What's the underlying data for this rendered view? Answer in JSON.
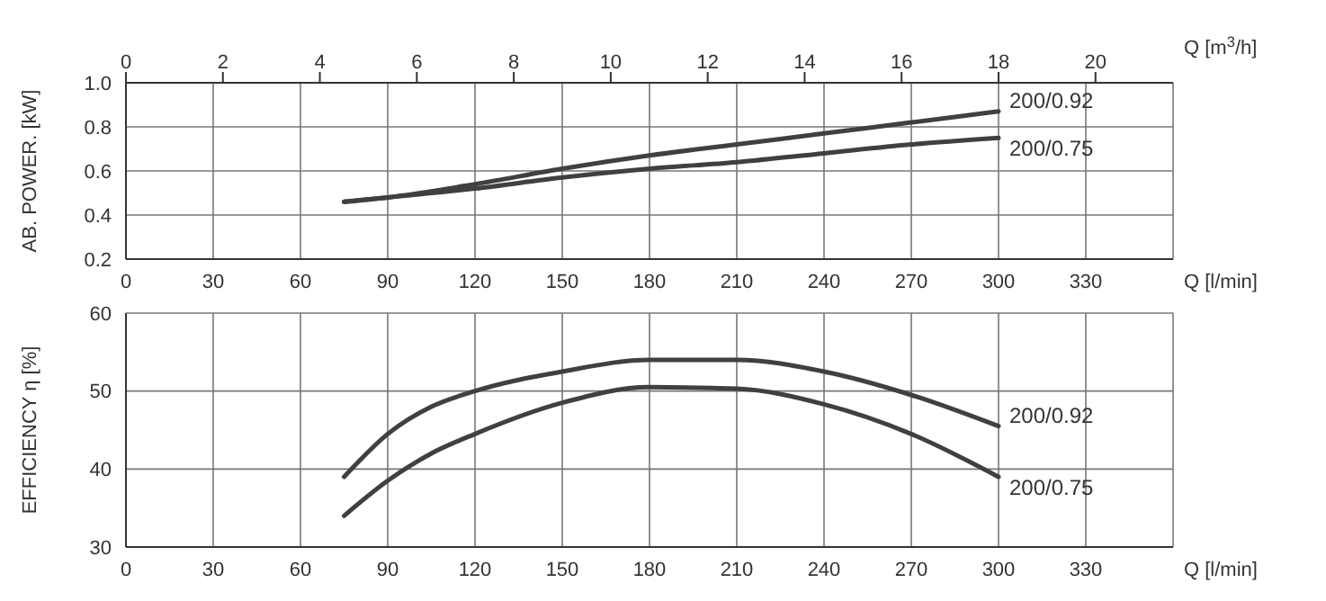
{
  "chart_data": [
    {
      "type": "line",
      "ylabel": "AB. POWER. [kW]",
      "xlabel": "Q [l/min]",
      "x2label": "Q [m$^{3}$/h]",
      "xlim": [
        0,
        360
      ],
      "xticks": [
        0,
        30,
        60,
        90,
        120,
        150,
        180,
        210,
        240,
        270,
        300,
        330
      ],
      "x2lim": [
        0,
        21.6
      ],
      "x2ticks": [
        0,
        2,
        4,
        6,
        8,
        10,
        12,
        14,
        16,
        18,
        20
      ],
      "ylim": [
        0.2,
        1.0
      ],
      "yticks": [
        0.2,
        0.4,
        0.6,
        0.8,
        {
          "value": 1,
          "label": "1.0"
        }
      ],
      "grid": true,
      "legend": false,
      "marker": "none",
      "line_style": "solid",
      "x": [
        75,
        90,
        120,
        150,
        180,
        210,
        240,
        270,
        300
      ],
      "series": [
        {
          "name": "200/0.92",
          "color": "#404040",
          "values": [
            0.46,
            0.48,
            0.54,
            0.61,
            0.67,
            0.72,
            0.77,
            0.82,
            0.87
          ]
        },
        {
          "name": "200/0.75",
          "color": "#404040",
          "values": [
            0.46,
            0.48,
            0.52,
            0.57,
            0.61,
            0.64,
            0.68,
            0.72,
            0.75
          ]
        }
      ]
    },
    {
      "type": "line",
      "ylabel": "EFFICIENCY η [%]",
      "xlabel": "Q [l/min]",
      "xlim": [
        0,
        360
      ],
      "xticks": [
        0,
        30,
        60,
        90,
        120,
        150,
        180,
        210,
        240,
        270,
        300,
        330
      ],
      "ylim": [
        30,
        60
      ],
      "yticks": [
        30,
        40,
        50,
        60
      ],
      "grid": true,
      "legend": false,
      "marker": "none",
      "line_style": "solid",
      "x": [
        75,
        90,
        105,
        120,
        150,
        180,
        210,
        240,
        270,
        300
      ],
      "series": [
        {
          "name": "200/0.92",
          "color": "#404040",
          "values": [
            39,
            44.5,
            48,
            50,
            52.5,
            54,
            54,
            52.5,
            49.5,
            45.5
          ]
        },
        {
          "name": "200/0.75",
          "color": "#404040",
          "values": [
            34,
            38.5,
            42,
            44.5,
            48.5,
            50.5,
            50.3,
            48.3,
            44.5,
            39
          ]
        }
      ]
    }
  ]
}
